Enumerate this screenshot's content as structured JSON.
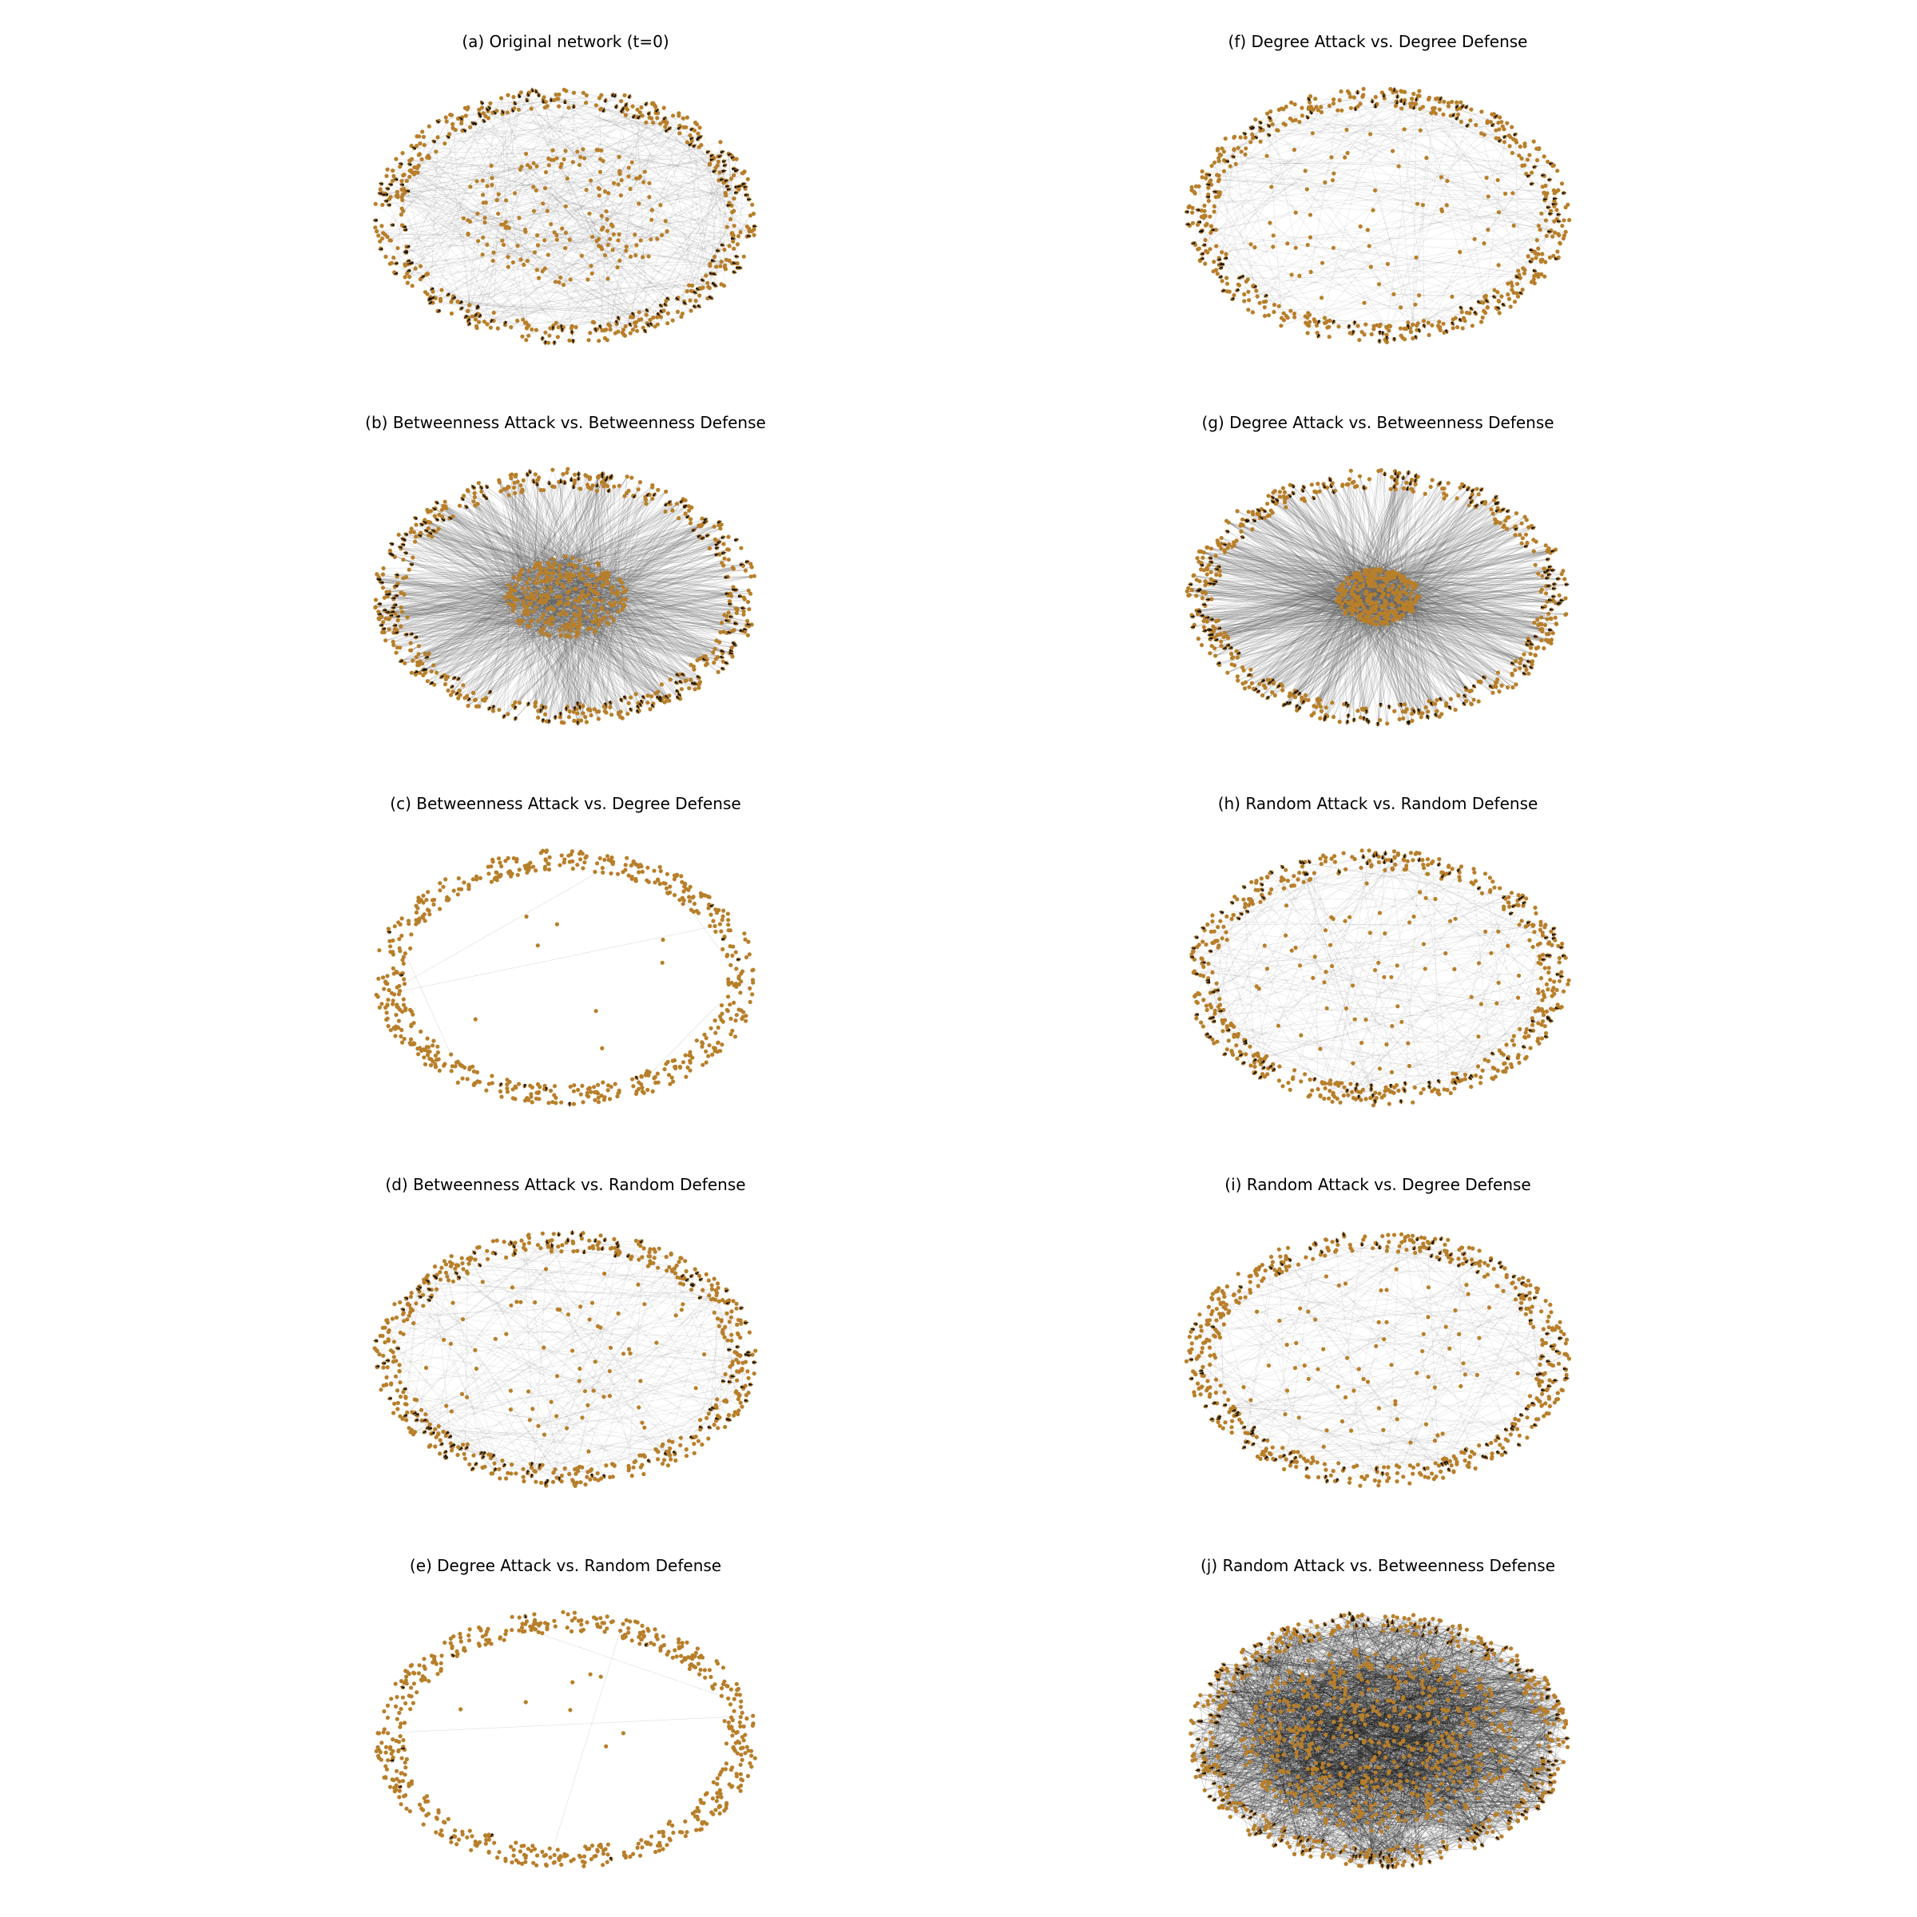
{
  "colors": {
    "node": "#b87f2a",
    "edge": "#555555",
    "arrow": "#111111",
    "background": "#ffffff"
  },
  "panels": [
    {
      "id": "a",
      "title": "(a) Original network (t=0)",
      "state": "mixed"
    },
    {
      "id": "f",
      "title": "(f) Degree Attack vs. Degree Defense",
      "state": "sparse"
    },
    {
      "id": "b",
      "title": "(b) Betweenness Attack vs. Betweenness Defense",
      "state": "hub-dense"
    },
    {
      "id": "g",
      "title": "(g) Degree Attack vs. Betweenness Defense",
      "state": "hub-dense"
    },
    {
      "id": "c",
      "title": "(c) Betweenness Attack vs. Degree Defense",
      "state": "fragmented"
    },
    {
      "id": "h",
      "title": "(h) Random Attack vs. Random Defense",
      "state": "sparse"
    },
    {
      "id": "d",
      "title": "(d) Betweenness Attack vs. Random Defense",
      "state": "sparse"
    },
    {
      "id": "i",
      "title": "(i) Random Attack vs. Degree Defense",
      "state": "sparse"
    },
    {
      "id": "e",
      "title": "(e) Degree Attack vs. Random Defense",
      "state": "fragmented"
    },
    {
      "id": "j",
      "title": "(j) Random Attack vs. Betweenness Defense",
      "state": "saturated"
    }
  ]
}
